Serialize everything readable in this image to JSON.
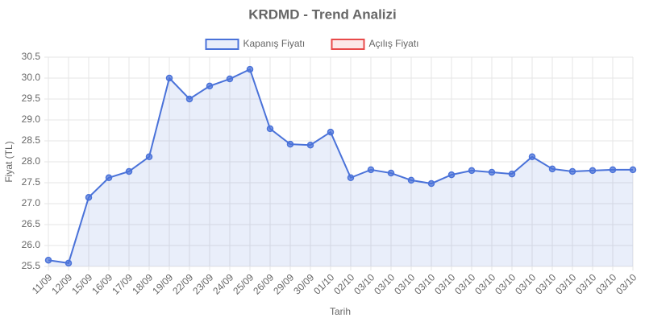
{
  "chart_data": {
    "type": "line",
    "title": "KRDMD - Trend Analizi",
    "x_label": "Tarih",
    "y_label": "Fiyat (TL)",
    "categories": [
      "11/09",
      "12/09",
      "15/09",
      "16/09",
      "17/09",
      "18/09",
      "19/09",
      "22/09",
      "23/09",
      "24/09",
      "25/09",
      "26/09",
      "29/09",
      "30/09",
      "01/10",
      "02/10",
      "03/10",
      "03/10",
      "03/10",
      "03/10",
      "03/10",
      "03/10",
      "03/10",
      "03/10",
      "03/10",
      "03/10",
      "03/10",
      "03/10",
      "03/10",
      "03/10"
    ],
    "series": [
      {
        "name": "Kapanış Fiyatı",
        "color": "#4a72d9",
        "fill": "rgba(74,114,217,0.12)",
        "values": [
          25.65,
          25.58,
          27.15,
          27.62,
          27.77,
          28.12,
          30.0,
          29.5,
          29.81,
          29.98,
          30.21,
          28.79,
          28.42,
          28.4,
          28.71,
          27.62,
          27.81,
          27.73,
          27.56,
          27.48,
          27.69,
          27.79,
          27.75,
          27.71,
          28.12,
          27.83,
          27.77,
          27.79,
          27.81,
          27.81
        ]
      },
      {
        "name": "Açılış Fiyatı",
        "color": "#e84a4a",
        "fill": "rgba(232,74,74,0.12)",
        "values": [
          null,
          null,
          null,
          null,
          null,
          null,
          null,
          null,
          null,
          null,
          null,
          null,
          null,
          null,
          null,
          null,
          null,
          null,
          null,
          null,
          null,
          null,
          null,
          null,
          null,
          null,
          null,
          null,
          null,
          null
        ]
      }
    ],
    "ylim": [
      25.5,
      30.5
    ],
    "yticks": [
      25.5,
      {
        "value": 26,
        "label": "26.0"
      },
      26.5,
      {
        "value": 27,
        "label": "27.0"
      },
      27.5,
      {
        "value": 28,
        "label": "28.0"
      },
      28.5,
      {
        "value": 29,
        "label": "29.0"
      },
      29.5,
      {
        "value": 30,
        "label": "30.0"
      },
      30.5
    ],
    "grid": true,
    "legend": "top"
  }
}
